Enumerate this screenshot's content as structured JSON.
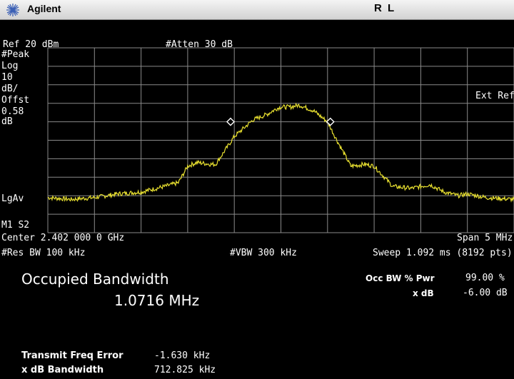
{
  "header": {
    "brand": "Agilent",
    "mode": "R L"
  },
  "settings": {
    "ref_level": "Ref 20 dBm",
    "atten": "#Atten 30 dB",
    "detector": "#Peak",
    "scale_type": "Log",
    "scale_value": "10",
    "scale_unit": "dB/",
    "offset_label": "Offst",
    "offset_value": "0.58",
    "offset_unit": "dB",
    "ext_ref": "Ext Ref",
    "averaging": "LgAv",
    "marker_mode": "M1  S2"
  },
  "footer": {
    "center": "Center 2.402 000 0 GHz",
    "span": "Span 5 MHz",
    "rbw": "#Res BW 100 kHz",
    "vbw": "#VBW 300 kHz",
    "sweep": "Sweep 1.092 ms (8192 pts)"
  },
  "measurement": {
    "title": "Occupied Bandwidth",
    "value": "1.0716 MHz",
    "occ_bw_label": "Occ BW % Pwr",
    "occ_bw_value": "99.00 %",
    "xdb_label": "x dB",
    "xdb_value": "-6.00 dB",
    "freq_error_label": "Transmit Freq Error",
    "freq_error_value": "-1.630 kHz",
    "xdb_bw_label": "x dB Bandwidth",
    "xdb_bw_value": "712.825 kHz"
  },
  "colors": {
    "trace": "#e8e030",
    "grid": "#8a8a8a",
    "background": "#000000"
  },
  "chart_data": {
    "type": "line",
    "x_unit": "MHz",
    "xlim": [
      2399.5,
      2404.5
    ],
    "ylim": [
      -80,
      20
    ],
    "x": [
      2399.5,
      2399.75,
      2400.0,
      2400.25,
      2400.5,
      2400.75,
      2400.9,
      2401.0,
      2401.1,
      2401.25,
      2401.3,
      2401.5,
      2401.7,
      2401.85,
      2401.95,
      2402.0,
      2402.1,
      2402.2,
      2402.35,
      2402.5,
      2402.6,
      2402.75,
      2402.9,
      2403.0,
      2403.2,
      2403.4,
      2403.6,
      2403.75,
      2403.9,
      2404.0,
      2404.2,
      2404.5
    ],
    "y": [
      -61,
      -62,
      -61,
      -59,
      -58,
      -55,
      -53,
      -44,
      -42,
      -43,
      -43,
      -28,
      -19,
      -16,
      -13,
      -12,
      -12,
      -11,
      -14,
      -20,
      -30,
      -44,
      -43,
      -44,
      -55,
      -56,
      -54,
      -58,
      -60,
      -59,
      -61,
      -62
    ],
    "markers": [
      {
        "x": 2401.46,
        "y": -20
      },
      {
        "x": 2402.53,
        "y": -20
      }
    ]
  }
}
